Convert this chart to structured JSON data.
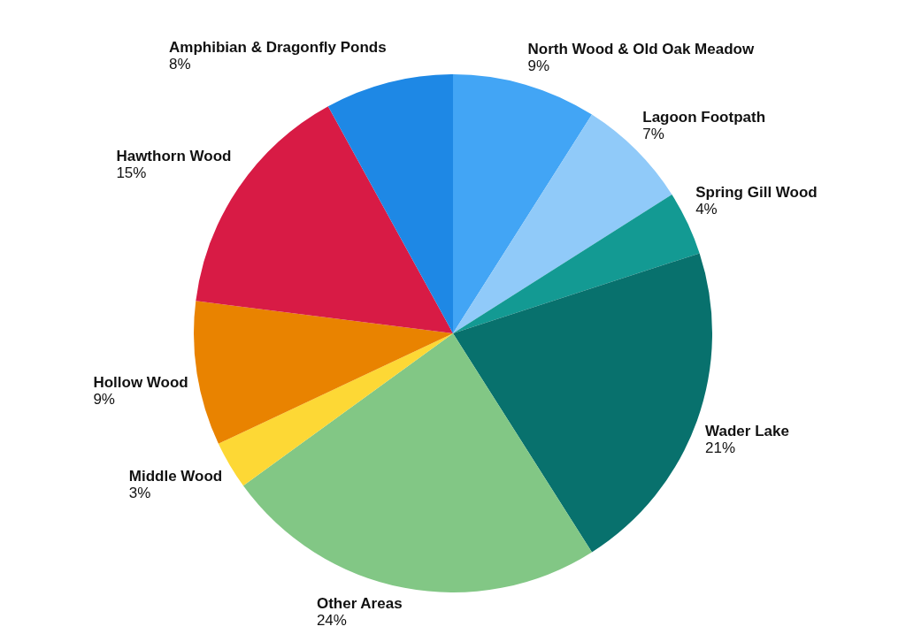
{
  "chart_data": {
    "type": "pie",
    "categories": [
      "North Wood & Old Oak Meadow",
      "Lagoon Footpath",
      "Spring Gill Wood",
      "Wader Lake",
      "Other Areas",
      "Middle Wood",
      "Hollow Wood",
      "Hawthorn Wood",
      "Amphibian & Dragonfly Ponds"
    ],
    "values": [
      9,
      7,
      4,
      21,
      24,
      3,
      9,
      15,
      8
    ],
    "value_labels": [
      "9%",
      "7%",
      "4%",
      "21%",
      "24%",
      "3%",
      "9%",
      "15%",
      "8%"
    ],
    "colors": [
      "#42a5f5",
      "#90caf9",
      "#139a93",
      "#08716d",
      "#82c785",
      "#fdd835",
      "#e98300",
      "#d81b45",
      "#1e88e5"
    ]
  }
}
